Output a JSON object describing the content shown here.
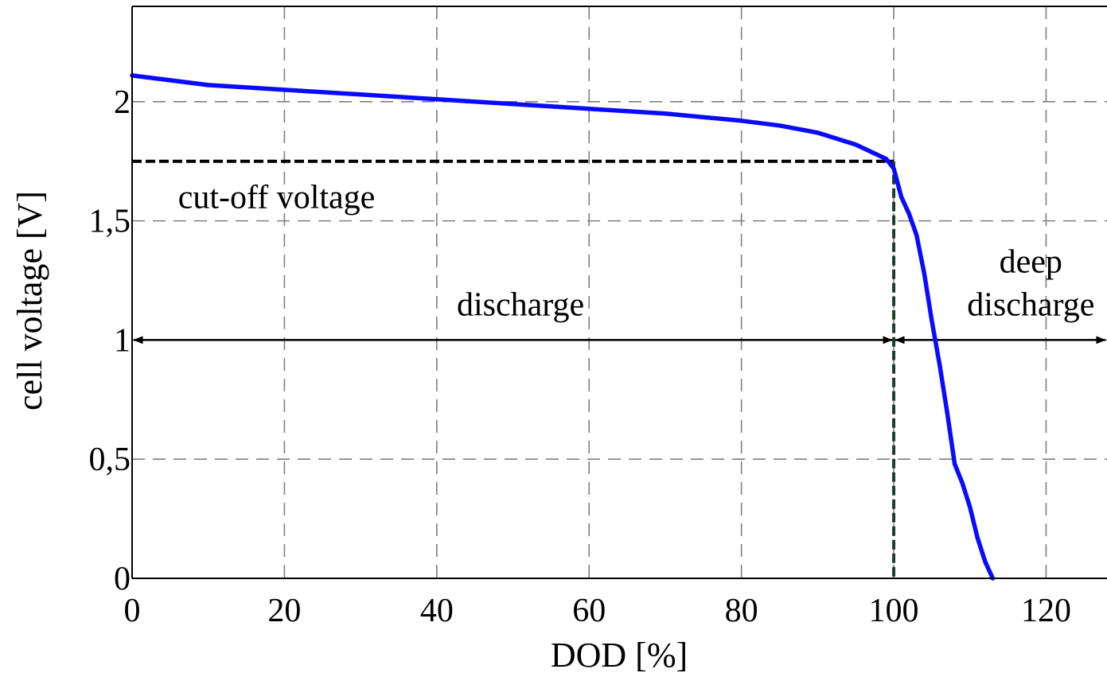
{
  "chart_data": {
    "type": "line",
    "title": "",
    "xlabel": "DOD [%]",
    "ylabel": "cell voltage [V]",
    "xlim": [
      0,
      128
    ],
    "ylim": [
      0,
      2.4
    ],
    "grid": true,
    "x_ticks": [
      {
        "value": 0,
        "label": "0"
      },
      {
        "value": 20,
        "label": "20"
      },
      {
        "value": 40,
        "label": "40"
      },
      {
        "value": 60,
        "label": "60"
      },
      {
        "value": 80,
        "label": "80"
      },
      {
        "value": 100,
        "label": "100"
      },
      {
        "value": 120,
        "label": "120"
      }
    ],
    "y_ticks": [
      {
        "value": 0,
        "label": "0"
      },
      {
        "value": 0.5,
        "label": "0,5"
      },
      {
        "value": 1,
        "label": "1"
      },
      {
        "value": 1.5,
        "label": "1,5"
      },
      {
        "value": 2,
        "label": "2"
      }
    ],
    "series": [
      {
        "color": "#0a0aff",
        "x": [
          0,
          5,
          10,
          20,
          30,
          40,
          50,
          60,
          70,
          80,
          85,
          90,
          93,
          95,
          97,
          99,
          100,
          101,
          102,
          103,
          104,
          105,
          106,
          107,
          108,
          109,
          110,
          111,
          112,
          113
        ],
        "y": [
          2.11,
          2.09,
          2.07,
          2.05,
          2.03,
          2.01,
          1.99,
          1.97,
          1.95,
          1.92,
          1.9,
          1.87,
          1.84,
          1.82,
          1.79,
          1.76,
          1.72,
          1.6,
          1.53,
          1.44,
          1.28,
          1.08,
          0.9,
          0.7,
          0.48,
          0.4,
          0.3,
          0.17,
          0.07,
          0.0
        ]
      }
    ],
    "reference_lines": {
      "cutoff_voltage": 1.75,
      "cutoff_dod": 100,
      "arrow_voltage": 1.0
    },
    "annotations": [
      {
        "text": "cut-off voltage",
        "x": 17,
        "y": 1.6
      },
      {
        "text": "discharge",
        "x": 51,
        "y": 1.15
      },
      {
        "text": "deep",
        "x": 118,
        "y": 1.33
      },
      {
        "text": "discharge",
        "x": 118,
        "y": 1.15
      }
    ]
  }
}
